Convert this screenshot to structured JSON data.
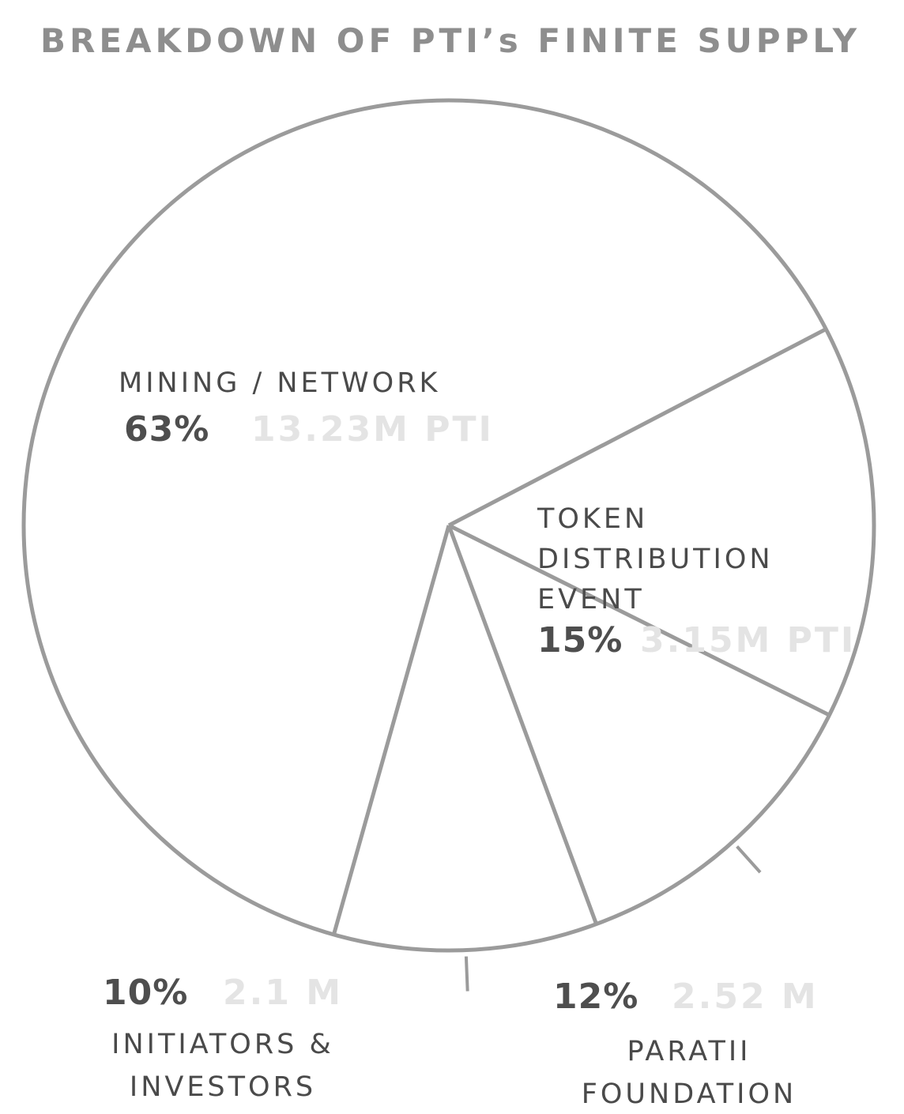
{
  "chart_data": {
    "type": "pie",
    "title": "BREAKDOWN OF PTI’s FINITE SUPPLY",
    "colors": {
      "outline": "#9b9b9b",
      "fill": "#ffffff",
      "label": "#4a4a4a",
      "percent": "#4e4e4e",
      "amount": "#e4e4e4",
      "title": "#8e8e8e"
    },
    "slices": [
      {
        "label_lines": [
          "TOKEN",
          "DISTRIBUTION",
          "EVENT"
        ],
        "percent": "15%",
        "amount": "3.15M PTI",
        "value": 15
      },
      {
        "label_lines": [
          "PARATII",
          "FOUNDATION"
        ],
        "percent": "12%",
        "amount": "2.52 M",
        "value": 12
      },
      {
        "label_lines": [
          "INITIATORS &",
          "INVESTORS"
        ],
        "percent": "10%",
        "amount": "2.1 M",
        "value": 10
      },
      {
        "label_lines": [
          "MINING / NETWORK"
        ],
        "percent": "63%",
        "amount": "13.23M PTI",
        "value": 63
      }
    ]
  }
}
